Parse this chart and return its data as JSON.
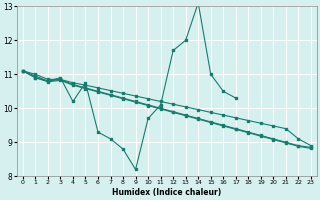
{
  "xlabel": "Humidex (Indice chaleur)",
  "background_color": "#d6f0f0",
  "line_color": "#1a7a6e",
  "grid_color": "#ffffff",
  "xlim": [
    -0.5,
    23.5
  ],
  "ylim": [
    8,
    13
  ],
  "yticks": [
    8,
    9,
    10,
    11,
    12,
    13
  ],
  "xticks": [
    0,
    1,
    2,
    3,
    4,
    5,
    6,
    7,
    8,
    9,
    10,
    11,
    12,
    13,
    14,
    15,
    16,
    17,
    18,
    19,
    20,
    21,
    22,
    23
  ],
  "series": [
    {
      "x": [
        0,
        1,
        2,
        3,
        4,
        5,
        6,
        7,
        8,
        9,
        10,
        11,
        12,
        13,
        14,
        15,
        16,
        17
      ],
      "y": [
        11.1,
        10.9,
        10.8,
        10.9,
        10.2,
        10.75,
        9.3,
        9.1,
        8.8,
        8.2,
        9.7,
        10.1,
        11.7,
        12.0,
        13.1,
        11.0,
        10.5,
        10.3
      ]
    },
    {
      "x": [
        0,
        1,
        2,
        3,
        4,
        5,
        6,
        7,
        8,
        9,
        10,
        11,
        12,
        13,
        14,
        15,
        16,
        17,
        18,
        19,
        20,
        21,
        22,
        23
      ],
      "y": [
        11.1,
        11.0,
        10.85,
        10.85,
        10.75,
        10.68,
        10.6,
        10.52,
        10.44,
        10.36,
        10.28,
        10.2,
        10.12,
        10.04,
        9.96,
        9.88,
        9.8,
        9.72,
        9.64,
        9.56,
        9.48,
        9.4,
        9.1,
        8.9
      ]
    },
    {
      "x": [
        0,
        1,
        2,
        3,
        4,
        5,
        6,
        7,
        8,
        9,
        10,
        11,
        12,
        13,
        14,
        15,
        16,
        17,
        18,
        19,
        20,
        21,
        22,
        23
      ],
      "y": [
        11.1,
        10.9,
        10.78,
        10.82,
        10.68,
        10.58,
        10.48,
        10.38,
        10.28,
        10.18,
        10.08,
        9.98,
        9.88,
        9.78,
        9.68,
        9.58,
        9.48,
        9.38,
        9.28,
        9.18,
        9.08,
        8.98,
        8.88,
        8.82
      ]
    },
    {
      "x": [
        0,
        1,
        2,
        3,
        4,
        5,
        6,
        7,
        8,
        9,
        10,
        11,
        12,
        13,
        14,
        15,
        16,
        17,
        18,
        19,
        20,
        21,
        22,
        23
      ],
      "y": [
        11.1,
        10.95,
        10.8,
        10.85,
        10.7,
        10.6,
        10.5,
        10.4,
        10.3,
        10.2,
        10.1,
        10.0,
        9.9,
        9.8,
        9.7,
        9.6,
        9.5,
        9.4,
        9.3,
        9.2,
        9.1,
        9.0,
        8.9,
        8.85
      ]
    }
  ]
}
